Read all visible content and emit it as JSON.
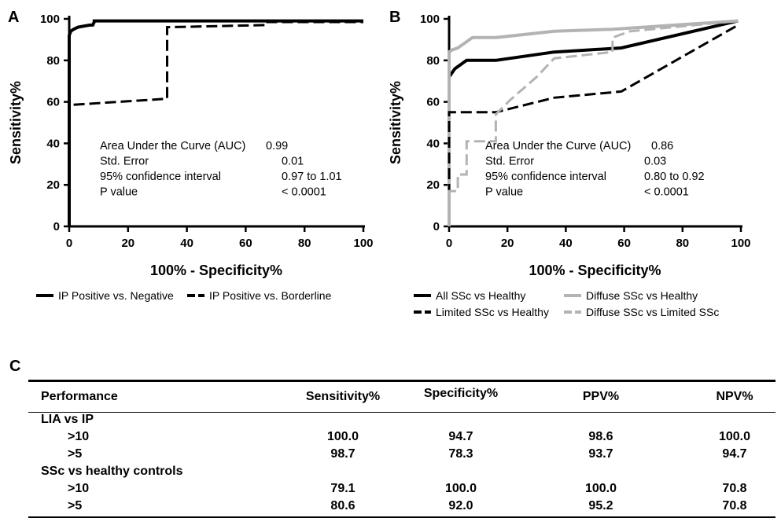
{
  "chart_data": [
    {
      "panel": "A",
      "type": "line",
      "xlabel": "100% - Specificity%",
      "ylabel": "Sensitivity%",
      "xlim": [
        0,
        100
      ],
      "ylim": [
        0,
        100
      ],
      "xticks": [
        0,
        20,
        40,
        60,
        80,
        100
      ],
      "yticks": [
        0,
        20,
        40,
        60,
        80,
        100
      ],
      "stats": [
        {
          "label": "Area Under the Curve (AUC)",
          "value": "0.99"
        },
        {
          "label": "Std. Error",
          "value": "0.01"
        },
        {
          "label": "95% confidence interval",
          "value": "0.97 to 1.01"
        },
        {
          "label": "P value",
          "value": "< 0.0001"
        }
      ],
      "legend_position": "bottom",
      "series": [
        {
          "name": "IP Positive vs. Negative",
          "color": "#000000",
          "dash": "solid",
          "x": [
            0,
            0,
            0.5,
            1.5,
            3,
            5,
            7,
            8,
            8.5,
            8.5,
            44,
            100
          ],
          "y": [
            0,
            92,
            94,
            95,
            96,
            96.5,
            97,
            97,
            98.5,
            99,
            99,
            99
          ]
        },
        {
          "name": "IP Positive vs. Borderline",
          "color": "#000000",
          "dash": "dashed",
          "x": [
            0,
            0,
            33.3,
            33.3,
            66.7,
            66.7,
            100
          ],
          "y": [
            0,
            58.5,
            61.5,
            96,
            97,
            98.5,
            98.5
          ]
        }
      ]
    },
    {
      "panel": "B",
      "type": "line",
      "xlabel": "100% - Specificity%",
      "ylabel": "Sensitivity%",
      "xlim": [
        0,
        100
      ],
      "ylim": [
        0,
        100
      ],
      "xticks": [
        0,
        20,
        40,
        60,
        80,
        100
      ],
      "yticks": [
        0,
        20,
        40,
        60,
        80,
        100
      ],
      "stats": [
        {
          "label": "Area Under the Curve (AUC)",
          "value": "0.86"
        },
        {
          "label": "Std. Error",
          "value": "0.03"
        },
        {
          "label": "95% confidence interval",
          "value": "0.80 to 0.92"
        },
        {
          "label": "P value",
          "value": "< 0.0001"
        }
      ],
      "legend_position": "bottom",
      "series": [
        {
          "name": "All SSc vs Healthy",
          "color": "#000000",
          "dash": "solid",
          "x": [
            0,
            0,
            1,
            2,
            3,
            4,
            5,
            6,
            16,
            36,
            59,
            99
          ],
          "y": [
            0,
            72,
            74,
            76,
            77,
            78,
            79,
            80,
            80,
            84,
            86,
            99
          ]
        },
        {
          "name": "Diffuse SSc vs Healthy",
          "color": "#b3b3b3",
          "dash": "solid",
          "x": [
            0,
            0,
            1,
            3,
            5,
            8,
            16,
            36,
            56,
            99
          ],
          "y": [
            0,
            84,
            85,
            86,
            88,
            91,
            91,
            94,
            95,
            99
          ]
        },
        {
          "name": "Limited SSc vs Healthy",
          "color": "#000000",
          "dash": "dashed",
          "x": [
            0,
            0,
            16,
            36,
            59,
            99
          ],
          "y": [
            0,
            55,
            55,
            62,
            65,
            97
          ]
        },
        {
          "name": "Diffuse SSc vs Limited SSc",
          "color": "#b3b3b3",
          "dash": "dashed",
          "x": [
            0,
            0,
            3,
            3,
            6,
            6,
            16,
            16,
            21,
            30,
            36,
            56,
            56,
            62,
            99
          ],
          "y": [
            0,
            17,
            17,
            25,
            25,
            41,
            41,
            54,
            61,
            72,
            81,
            84,
            91,
            94,
            99
          ]
        }
      ]
    }
  ],
  "panel_labels": {
    "a": "A",
    "b": "B",
    "c": "C"
  },
  "table": {
    "headers": [
      "Performance",
      "Sensitivity%",
      "Specificity%",
      "PPV%",
      "NPV%"
    ],
    "groups": [
      {
        "title": "LIA vs IP",
        "rows": [
          {
            "label": ">10",
            "values": [
              "100.0",
              "94.7",
              "98.6",
              "100.0"
            ]
          },
          {
            "label": ">5",
            "values": [
              "98.7",
              "78.3",
              "93.7",
              "94.7"
            ]
          }
        ]
      },
      {
        "title": "SSc vs healthy controls",
        "rows": [
          {
            "label": ">10",
            "values": [
              "79.1",
              "100.0",
              "100.0",
              "70.8"
            ]
          },
          {
            "label": ">5",
            "values": [
              "80.6",
              "92.0",
              "95.2",
              "70.8"
            ]
          }
        ]
      }
    ]
  }
}
